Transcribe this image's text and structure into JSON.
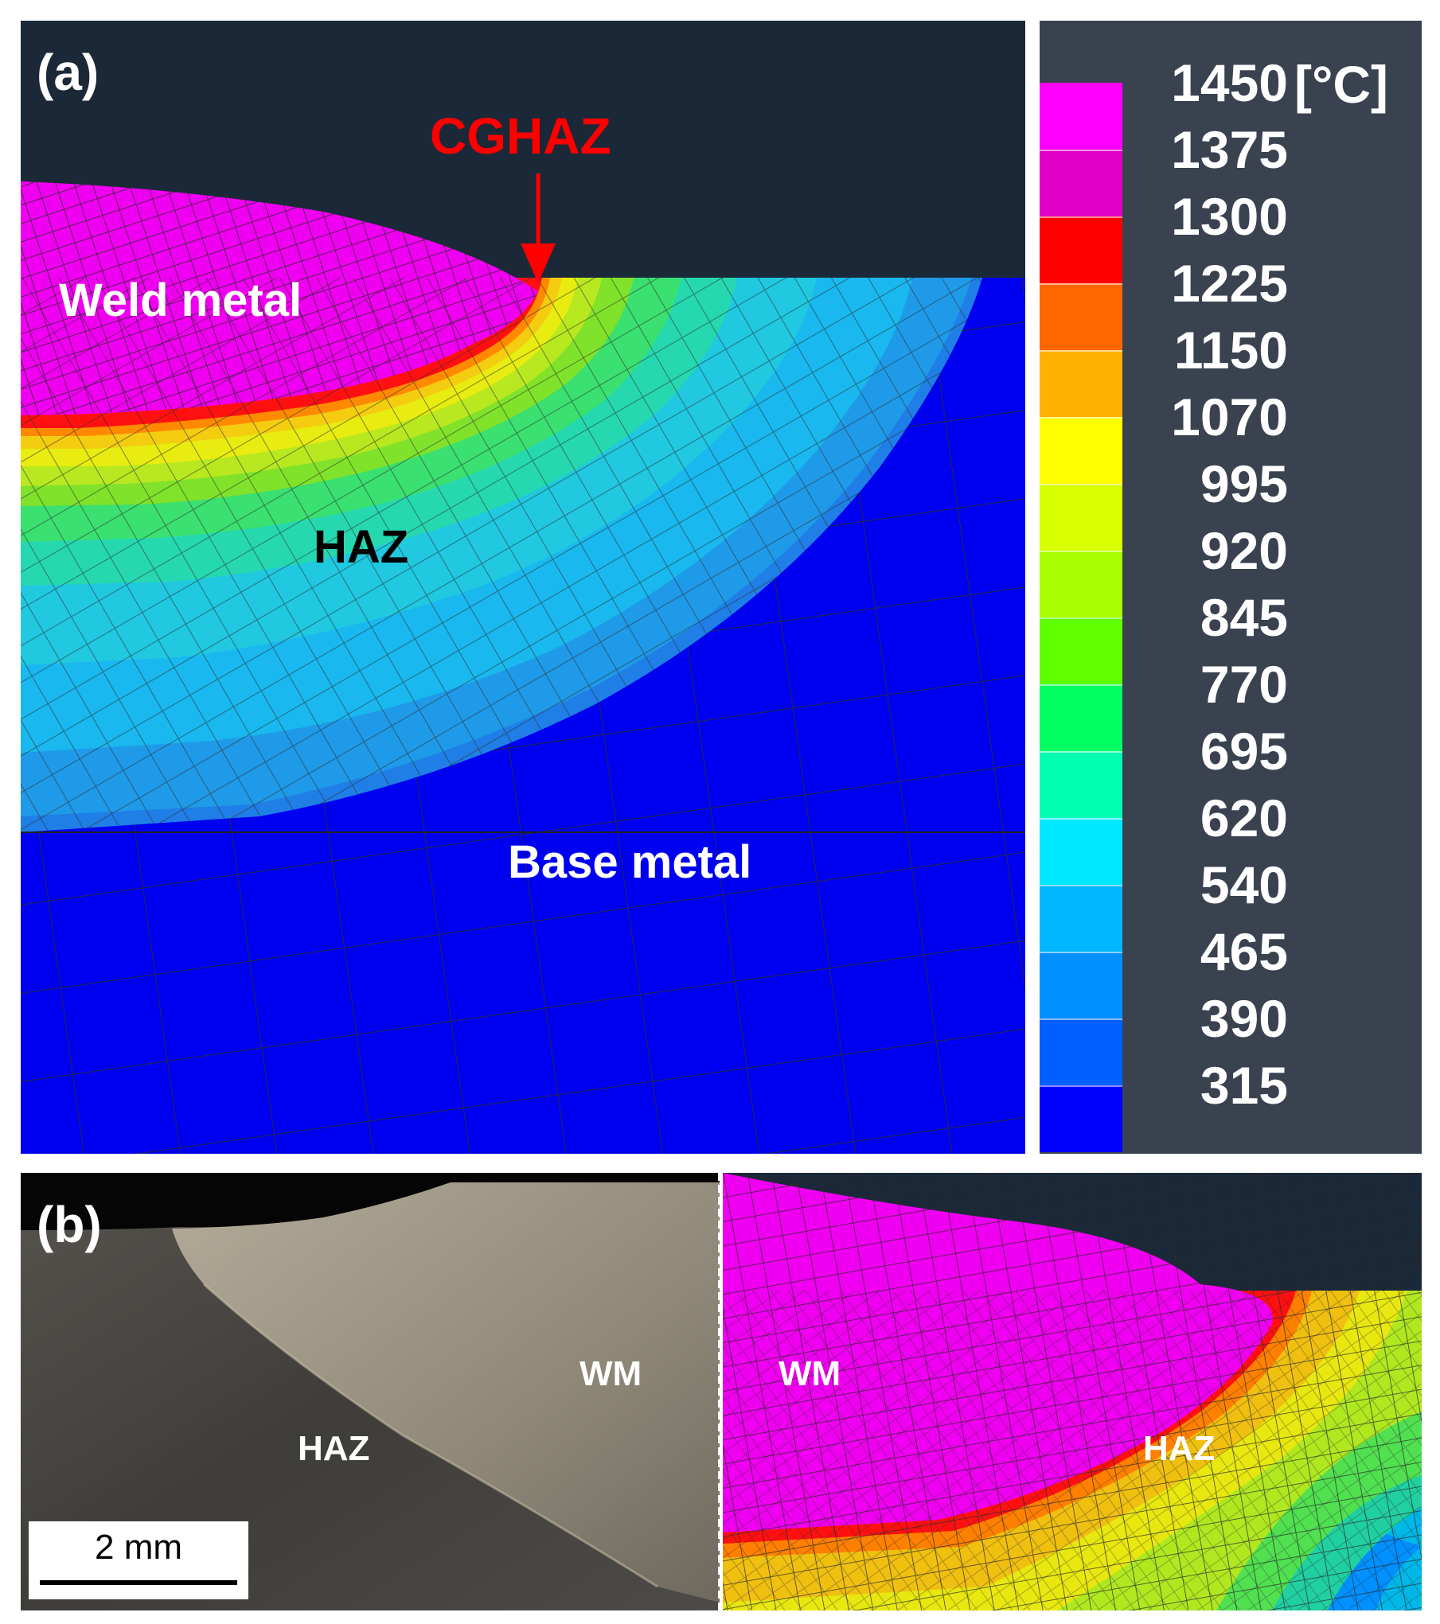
{
  "panel_a": {
    "label": "(a)",
    "callout": "CGHAZ",
    "regions": {
      "weld_metal": "Weld metal",
      "haz": "HAZ",
      "base_metal": "Base metal"
    }
  },
  "legend": {
    "unit": "[°C]",
    "ticks": [
      "1450",
      "1375",
      "1300",
      "1225",
      "1150",
      "1070",
      "995",
      "920",
      "845",
      "770",
      "695",
      "620",
      "540",
      "465",
      "390",
      "315"
    ],
    "colors": [
      "#ff00ff",
      "#e000c8",
      "#ff0000",
      "#ff6600",
      "#ffb000",
      "#ffff00",
      "#d8ff00",
      "#a8ff00",
      "#60ff00",
      "#00ff60",
      "#00ffb0",
      "#00e8ff",
      "#00b8ff",
      "#0090ff",
      "#0060ff",
      "#0000ff"
    ]
  },
  "panel_b": {
    "label": "(b)",
    "micrograph": {
      "wm": "WM",
      "haz": "HAZ"
    },
    "scale_bar": "2 mm",
    "simulation": {
      "wm": "WM",
      "haz": "HAZ"
    }
  }
}
